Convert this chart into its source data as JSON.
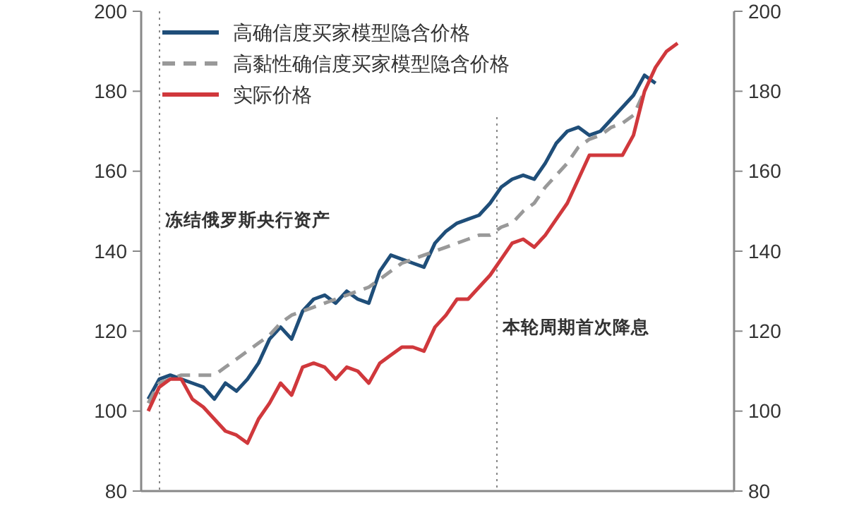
{
  "chart_data": {
    "type": "line",
    "categories": [
      null,
      null,
      null,
      null,
      null,
      null,
      null,
      null,
      null,
      null,
      null,
      null,
      null,
      null,
      null,
      null,
      null,
      null,
      null,
      null,
      null,
      null,
      null,
      null,
      null,
      null,
      null,
      null,
      null,
      null,
      null,
      null,
      null,
      null,
      null,
      null,
      null,
      null,
      null,
      null,
      null,
      null,
      null,
      null,
      null,
      null,
      null,
      null,
      null
    ],
    "ylim": [
      80,
      200
    ],
    "yticks": [
      80,
      100,
      120,
      140,
      160,
      180,
      200
    ],
    "y2lim": [
      80,
      200
    ],
    "y2ticks": [
      80,
      100,
      120,
      140,
      160,
      180,
      200
    ],
    "legend": "top left",
    "marker": "none",
    "series": [
      {
        "name": "高确信度买家模型隐含价格",
        "color": "#1f4e79",
        "line_style": "solid",
        "values": [
          103,
          108,
          109,
          108,
          107,
          106,
          103,
          107,
          105,
          108,
          112,
          118,
          121,
          118,
          125,
          128,
          129,
          127,
          130,
          128,
          127,
          135,
          139,
          138,
          137,
          136,
          142,
          145,
          147,
          148,
          149,
          152,
          156,
          158,
          159,
          158,
          162,
          167,
          170,
          171,
          169,
          170,
          173,
          176,
          179,
          184,
          182,
          null,
          null
        ]
      },
      {
        "name": "高黏性确信度买家模型隐含价格",
        "color": "#999999",
        "line_style": "dashed",
        "values": [
          102,
          107,
          108,
          109,
          109,
          109,
          109,
          111,
          113,
          115,
          117,
          119,
          122,
          124,
          125,
          126,
          127,
          128,
          129,
          130,
          131,
          133,
          135,
          137,
          138,
          139,
          140,
          141,
          142,
          143,
          144,
          144,
          146,
          147,
          150,
          152,
          156,
          159,
          162,
          166,
          168,
          169,
          171,
          172,
          174,
          180,
          null,
          null,
          null
        ]
      },
      {
        "name": "实际价格",
        "color": "#d0383c",
        "line_style": "solid",
        "values": [
          100,
          106,
          108,
          108,
          103,
          101,
          98,
          95,
          94,
          92,
          98,
          102,
          107,
          104,
          111,
          112,
          111,
          108,
          111,
          110,
          107,
          112,
          114,
          116,
          116,
          115,
          121,
          124,
          128,
          128,
          131,
          134,
          138,
          142,
          143,
          141,
          144,
          148,
          152,
          158,
          164,
          164,
          164,
          164,
          169,
          180,
          186,
          190,
          192
        ]
      }
    ],
    "annotations": [
      "冻结俄罗斯央行资产",
      "本轮周期首次降息"
    ]
  }
}
